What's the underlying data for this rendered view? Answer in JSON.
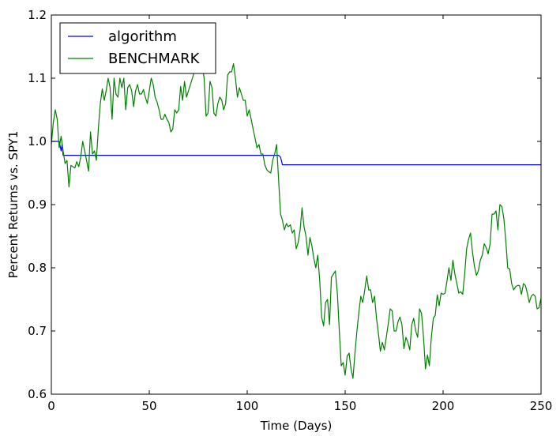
{
  "chart_data": {
    "type": "line",
    "title": "",
    "xlabel": "Time (Days)",
    "ylabel": "Percent Returns vs. SPY1",
    "xlim": [
      0,
      250
    ],
    "ylim": [
      0.6,
      1.2
    ],
    "xticks": [
      0,
      50,
      100,
      150,
      200,
      250
    ],
    "yticks": [
      0.6,
      0.7,
      0.8,
      0.9,
      1.0,
      1.1,
      1.2
    ],
    "xtick_labels": [
      "0",
      "50",
      "100",
      "150",
      "200",
      "250"
    ],
    "ytick_labels": [
      "0.6",
      "0.7",
      "0.8",
      "0.9",
      "1.0",
      "1.1",
      "1.2"
    ],
    "grid": false,
    "legend_position": "top-left",
    "series": [
      {
        "name": "algorithm",
        "color": "#0000ff",
        "points": [
          [
            0,
            1.0
          ],
          [
            4,
            1.0
          ],
          [
            5,
            0.985
          ],
          [
            5.5,
            0.995
          ],
          [
            6,
            0.978
          ],
          [
            116,
            0.978
          ],
          [
            117,
            0.975
          ],
          [
            118,
            0.963
          ],
          [
            250,
            0.963
          ]
        ]
      },
      {
        "name": "BENCHMARK",
        "color": "#008000",
        "points": [
          [
            0,
            0.995
          ],
          [
            1,
            1.03
          ],
          [
            2,
            1.05
          ],
          [
            3,
            1.035
          ],
          [
            4,
            0.99
          ],
          [
            5,
            1.008
          ],
          [
            6,
            0.985
          ],
          [
            7,
            0.965
          ],
          [
            8,
            0.97
          ],
          [
            9,
            0.928
          ],
          [
            10,
            0.962
          ],
          [
            11,
            0.96
          ],
          [
            12,
            0.958
          ],
          [
            13,
            0.968
          ],
          [
            14,
            0.96
          ],
          [
            15,
            0.975
          ],
          [
            16,
            1.0
          ],
          [
            17,
            0.985
          ],
          [
            18,
            0.97
          ],
          [
            19,
            0.953
          ],
          [
            20,
            1.015
          ],
          [
            21,
            0.98
          ],
          [
            22,
            0.985
          ],
          [
            23,
            0.97
          ],
          [
            24,
            1.02
          ],
          [
            25,
            1.06
          ],
          [
            26,
            1.083
          ],
          [
            27,
            1.065
          ],
          [
            28,
            1.08
          ],
          [
            29,
            1.1
          ],
          [
            30,
            1.085
          ],
          [
            31,
            1.035
          ],
          [
            32,
            1.1
          ],
          [
            33,
            1.075
          ],
          [
            34,
            1.07
          ],
          [
            35,
            1.1
          ],
          [
            36,
            1.085
          ],
          [
            37,
            1.1
          ],
          [
            38,
            1.05
          ],
          [
            39,
            1.085
          ],
          [
            40,
            1.09
          ],
          [
            41,
            1.08
          ],
          [
            42,
            1.055
          ],
          [
            43,
            1.08
          ],
          [
            44,
            1.09
          ],
          [
            45,
            1.075
          ],
          [
            46,
            1.075
          ],
          [
            47,
            1.082
          ],
          [
            48,
            1.07
          ],
          [
            49,
            1.06
          ],
          [
            50,
            1.08
          ],
          [
            51,
            1.1
          ],
          [
            52,
            1.09
          ],
          [
            53,
            1.07
          ],
          [
            54,
            1.062
          ],
          [
            55,
            1.05
          ],
          [
            56,
            1.035
          ],
          [
            57,
            1.035
          ],
          [
            58,
            1.043
          ],
          [
            59,
            1.035
          ],
          [
            60,
            1.03
          ],
          [
            61,
            1.015
          ],
          [
            62,
            1.02
          ],
          [
            63,
            1.05
          ],
          [
            64,
            1.045
          ],
          [
            65,
            1.05
          ],
          [
            66,
            1.087
          ],
          [
            67,
            1.065
          ],
          [
            68,
            1.095
          ],
          [
            69,
            1.07
          ],
          [
            70,
            1.08
          ],
          [
            71,
            1.09
          ],
          [
            72,
            1.1
          ],
          [
            73,
            1.11
          ],
          [
            74,
            1.12
          ],
          [
            75,
            1.125
          ],
          [
            76,
            1.115
          ],
          [
            77,
            1.12
          ],
          [
            78,
            1.1
          ],
          [
            79,
            1.04
          ],
          [
            80,
            1.045
          ],
          [
            81,
            1.095
          ],
          [
            82,
            1.085
          ],
          [
            83,
            1.045
          ],
          [
            84,
            1.04
          ],
          [
            85,
            1.06
          ],
          [
            86,
            1.07
          ],
          [
            87,
            1.065
          ],
          [
            88,
            1.05
          ],
          [
            89,
            1.06
          ],
          [
            90,
            1.105
          ],
          [
            91,
            1.11
          ],
          [
            92,
            1.11
          ],
          [
            93,
            1.123
          ],
          [
            94,
            1.1
          ],
          [
            95,
            1.07
          ],
          [
            96,
            1.085
          ],
          [
            97,
            1.075
          ],
          [
            98,
            1.065
          ],
          [
            99,
            1.065
          ],
          [
            100,
            1.04
          ],
          [
            101,
            1.05
          ],
          [
            102,
            1.035
          ],
          [
            103,
            1.02
          ],
          [
            104,
            1.005
          ],
          [
            105,
            0.99
          ],
          [
            106,
            0.995
          ],
          [
            107,
            0.98
          ],
          [
            108,
            0.98
          ],
          [
            109,
            0.963
          ],
          [
            110,
            0.955
          ],
          [
            111,
            0.952
          ],
          [
            112,
            0.95
          ],
          [
            113,
            0.97
          ],
          [
            114,
            0.98
          ],
          [
            115,
            0.995
          ],
          [
            116,
            0.94
          ],
          [
            117,
            0.885
          ],
          [
            118,
            0.875
          ],
          [
            119,
            0.86
          ],
          [
            120,
            0.87
          ],
          [
            121,
            0.865
          ],
          [
            122,
            0.868
          ],
          [
            123,
            0.855
          ],
          [
            124,
            0.86
          ],
          [
            125,
            0.83
          ],
          [
            126,
            0.84
          ],
          [
            127,
            0.86
          ],
          [
            128,
            0.895
          ],
          [
            129,
            0.865
          ],
          [
            130,
            0.85
          ],
          [
            131,
            0.82
          ],
          [
            132,
            0.848
          ],
          [
            133,
            0.835
          ],
          [
            134,
            0.815
          ],
          [
            135,
            0.8
          ],
          [
            136,
            0.82
          ],
          [
            137,
            0.78
          ],
          [
            138,
            0.722
          ],
          [
            139,
            0.708
          ],
          [
            140,
            0.745
          ],
          [
            141,
            0.75
          ],
          [
            142,
            0.71
          ],
          [
            143,
            0.785
          ],
          [
            144,
            0.79
          ],
          [
            145,
            0.795
          ],
          [
            146,
            0.76
          ],
          [
            147,
            0.7
          ],
          [
            148,
            0.645
          ],
          [
            149,
            0.65
          ],
          [
            150,
            0.63
          ],
          [
            151,
            0.66
          ],
          [
            152,
            0.665
          ],
          [
            153,
            0.64
          ],
          [
            154,
            0.625
          ],
          [
            155,
            0.665
          ],
          [
            156,
            0.7
          ],
          [
            157,
            0.73
          ],
          [
            158,
            0.755
          ],
          [
            159,
            0.745
          ],
          [
            160,
            0.765
          ],
          [
            161,
            0.787
          ],
          [
            162,
            0.765
          ],
          [
            163,
            0.765
          ],
          [
            164,
            0.745
          ],
          [
            165,
            0.755
          ],
          [
            166,
            0.72
          ],
          [
            167,
            0.695
          ],
          [
            168,
            0.668
          ],
          [
            169,
            0.682
          ],
          [
            170,
            0.67
          ],
          [
            171,
            0.69
          ],
          [
            172,
            0.712
          ],
          [
            173,
            0.735
          ],
          [
            174,
            0.732
          ],
          [
            175,
            0.7
          ],
          [
            176,
            0.7
          ],
          [
            177,
            0.715
          ],
          [
            178,
            0.722
          ],
          [
            179,
            0.71
          ],
          [
            180,
            0.672
          ],
          [
            181,
            0.69
          ],
          [
            182,
            0.682
          ],
          [
            183,
            0.67
          ],
          [
            184,
            0.71
          ],
          [
            185,
            0.72
          ],
          [
            186,
            0.7
          ],
          [
            187,
            0.69
          ],
          [
            188,
            0.735
          ],
          [
            189,
            0.728
          ],
          [
            190,
            0.69
          ],
          [
            191,
            0.64
          ],
          [
            192,
            0.662
          ],
          [
            193,
            0.645
          ],
          [
            194,
            0.69
          ],
          [
            195,
            0.72
          ],
          [
            196,
            0.725
          ],
          [
            197,
            0.757
          ],
          [
            198,
            0.74
          ],
          [
            199,
            0.76
          ],
          [
            200,
            0.758
          ],
          [
            201,
            0.76
          ],
          [
            202,
            0.78
          ],
          [
            203,
            0.8
          ],
          [
            204,
            0.78
          ],
          [
            205,
            0.812
          ],
          [
            206,
            0.79
          ],
          [
            207,
            0.775
          ],
          [
            208,
            0.76
          ],
          [
            209,
            0.762
          ],
          [
            210,
            0.758
          ],
          [
            211,
            0.79
          ],
          [
            212,
            0.83
          ],
          [
            213,
            0.845
          ],
          [
            214,
            0.855
          ],
          [
            215,
            0.825
          ],
          [
            216,
            0.802
          ],
          [
            217,
            0.788
          ],
          [
            218,
            0.795
          ],
          [
            219,
            0.812
          ],
          [
            220,
            0.82
          ],
          [
            221,
            0.838
          ],
          [
            222,
            0.832
          ],
          [
            223,
            0.822
          ],
          [
            224,
            0.838
          ],
          [
            225,
            0.885
          ],
          [
            226,
            0.885
          ],
          [
            227,
            0.89
          ],
          [
            228,
            0.86
          ],
          [
            229,
            0.9
          ],
          [
            230,
            0.897
          ],
          [
            231,
            0.878
          ],
          [
            232,
            0.842
          ],
          [
            233,
            0.8
          ],
          [
            234,
            0.798
          ],
          [
            235,
            0.775
          ],
          [
            236,
            0.765
          ],
          [
            237,
            0.77
          ],
          [
            238,
            0.772
          ],
          [
            239,
            0.772
          ],
          [
            240,
            0.758
          ],
          [
            241,
            0.775
          ],
          [
            242,
            0.772
          ],
          [
            243,
            0.76
          ],
          [
            244,
            0.745
          ],
          [
            245,
            0.755
          ],
          [
            246,
            0.758
          ],
          [
            247,
            0.755
          ],
          [
            248,
            0.735
          ],
          [
            249,
            0.737
          ],
          [
            250,
            0.752
          ]
        ]
      }
    ]
  }
}
